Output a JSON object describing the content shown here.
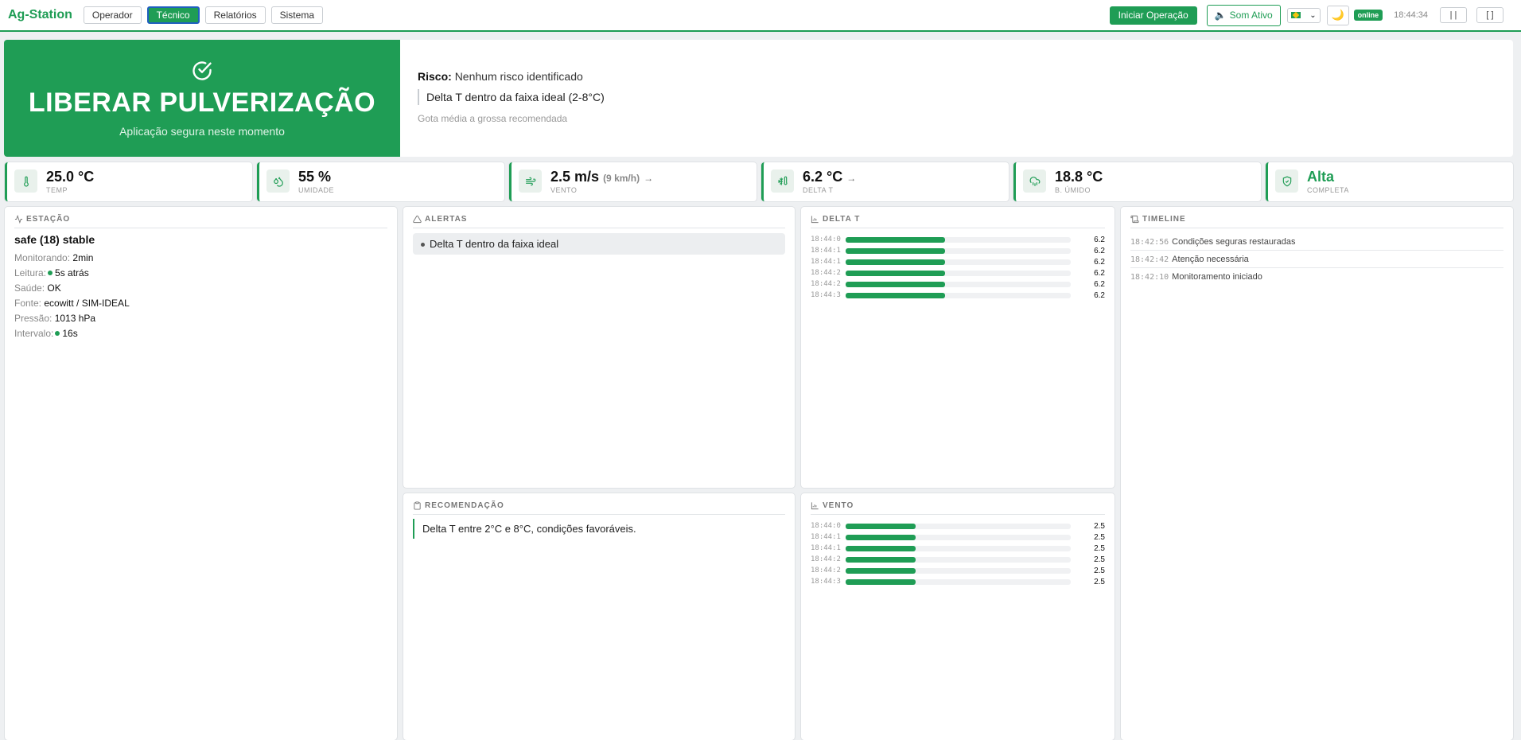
{
  "app": {
    "brand": "Ag-Station",
    "nav": [
      "Operador",
      "Técnico",
      "Relatórios",
      "Sistema"
    ],
    "active_tab": "Técnico",
    "start_button": "Iniciar Operação",
    "sound_button": "Som Ativo",
    "language_flag": "brazil-flag-icon",
    "theme_icon": "moon-icon",
    "status_badge": "online",
    "clock": "18:44:34",
    "pause_button": "| |",
    "fullscreen_button": "[ ]",
    "accent_color": "#1f9d55"
  },
  "hero": {
    "icon": "check-circle-icon",
    "title": "LIBERAR PULVERIZAÇÃO",
    "subtitle": "Aplicação segura neste momento",
    "risk_label": "Risco:",
    "risk_value": "Nenhum risco identificado",
    "detail": "Delta T dentro da faixa ideal (2-8°C)",
    "note": "Gota média a grossa recomendada"
  },
  "metrics": [
    {
      "icon": "thermometer-icon",
      "value": "25.0 °C",
      "extra": "",
      "arrow": "",
      "label": "TEMP"
    },
    {
      "icon": "humidity-drops-icon",
      "value": "55 %",
      "extra": "",
      "arrow": "",
      "label": "UMIDADE"
    },
    {
      "icon": "wind-icon",
      "value": "2.5 m/s",
      "extra": "(9 km/h)",
      "arrow": "→",
      "label": "VENTO"
    },
    {
      "icon": "thermometer-snow-icon",
      "value": "6.2 °C",
      "extra": "",
      "arrow": "→",
      "label": "DELTA T"
    },
    {
      "icon": "cloud-rain-icon",
      "value": "18.8 °C",
      "extra": "",
      "arrow": "",
      "label": "B. ÚMIDO"
    },
    {
      "icon": "shield-check-icon",
      "value": "Alta",
      "extra": "",
      "arrow": "",
      "label": "COMPLETA"
    }
  ],
  "station": {
    "header": "ESTAÇÃO",
    "title": "safe (18) stable",
    "rows": [
      {
        "k": "Monitorando:",
        "v": "2min",
        "dot": false
      },
      {
        "k": "Leitura:",
        "v": "5s atrás",
        "dot": true
      },
      {
        "k": "Saúde:",
        "v": "OK",
        "dot": false
      },
      {
        "k": "Fonte:",
        "v": "ecowitt / SIM-IDEAL",
        "dot": false
      },
      {
        "k": "Pressão:",
        "v": "1013 hPa",
        "dot": false
      },
      {
        "k": "Intervalo:",
        "v": "16s",
        "dot": true
      }
    ]
  },
  "alerts": {
    "header": "ALERTAS",
    "items": [
      "Delta T dentro da faixa ideal"
    ]
  },
  "recommendation": {
    "header": "RECOMENDAÇÃO",
    "text": "Delta T entre 2°C e 8°C, condições favoráveis."
  },
  "timeline": {
    "header": "TIMELINE",
    "items": [
      {
        "time": "18:42:56",
        "text": "Condições seguras restauradas"
      },
      {
        "time": "18:42:42",
        "text": "Atenção necessária"
      },
      {
        "time": "18:42:10",
        "text": "Monitoramento iniciado"
      }
    ]
  },
  "chart_data": [
    {
      "type": "bar",
      "title": "DELTA T",
      "categories": [
        "18:44:0",
        "18:44:1",
        "18:44:1",
        "18:44:2",
        "18:44:2",
        "18:44:3"
      ],
      "values": [
        6.2,
        6.2,
        6.2,
        6.2,
        6.2,
        6.2
      ],
      "xlim": [
        0,
        14
      ],
      "orientation": "horizontal"
    },
    {
      "type": "bar",
      "title": "VENTO",
      "categories": [
        "18:44:0",
        "18:44:1",
        "18:44:1",
        "18:44:2",
        "18:44:2",
        "18:44:3"
      ],
      "values": [
        2.5,
        2.5,
        2.5,
        2.5,
        2.5,
        2.5
      ],
      "xlim": [
        0,
        8
      ],
      "orientation": "horizontal"
    }
  ]
}
